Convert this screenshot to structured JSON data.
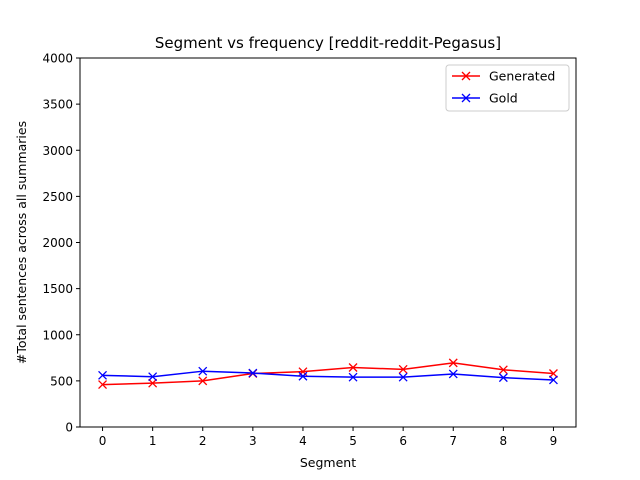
{
  "chart_data": {
    "type": "line",
    "title": "Segment vs frequency [reddit-reddit-Pegasus]",
    "xlabel": "Segment",
    "ylabel": "#Total sentences across all summaries",
    "x": [
      0,
      1,
      2,
      3,
      4,
      5,
      6,
      7,
      8,
      9
    ],
    "xlim": [
      -0.45,
      9.45
    ],
    "ylim": [
      0,
      4000
    ],
    "xticks": [
      "0",
      "1",
      "2",
      "3",
      "4",
      "5",
      "6",
      "7",
      "8",
      "9"
    ],
    "yticks": [
      "0",
      "500",
      "1000",
      "1500",
      "2000",
      "2500",
      "3000",
      "3500",
      "4000"
    ],
    "grid": false,
    "legend_position": "top-right",
    "series": [
      {
        "name": "Generated",
        "color": "#ff0000",
        "marker": "x",
        "values": [
          460,
          475,
          500,
          580,
          600,
          645,
          625,
          695,
          620,
          580
        ]
      },
      {
        "name": "Gold",
        "color": "#0000ff",
        "marker": "x",
        "values": [
          560,
          545,
          605,
          585,
          550,
          540,
          540,
          575,
          535,
          510
        ]
      }
    ]
  }
}
